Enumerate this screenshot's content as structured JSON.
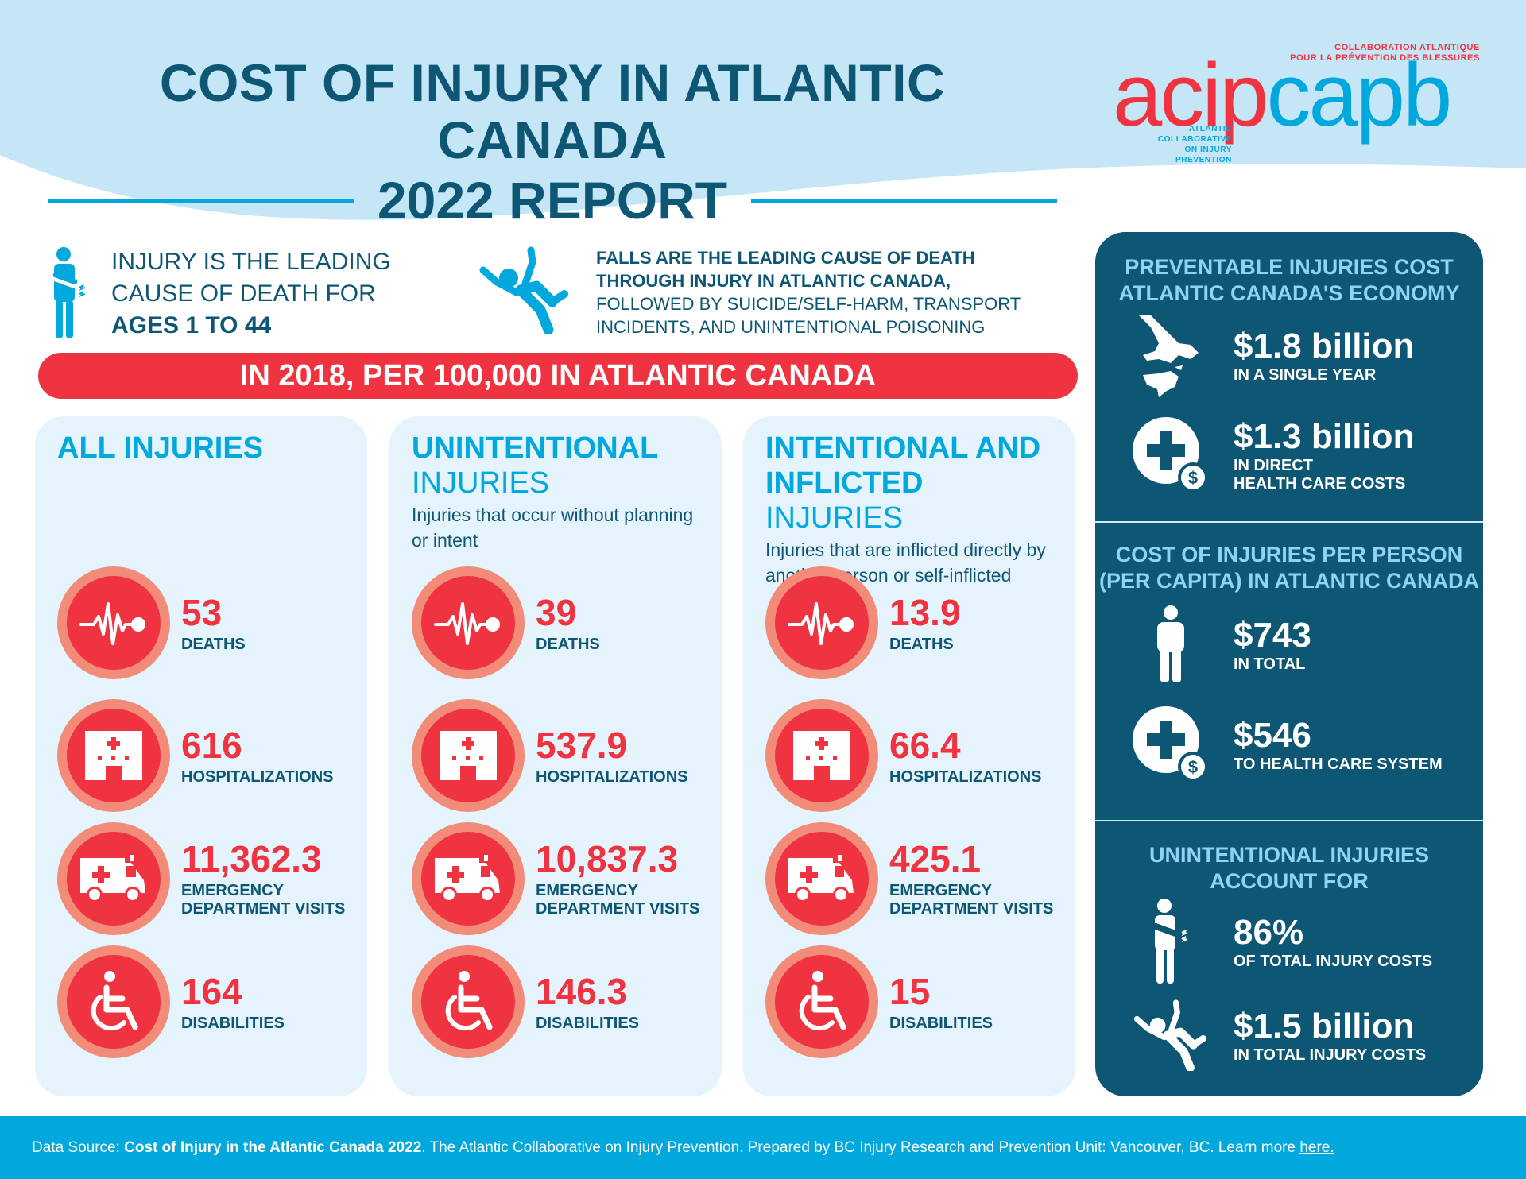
{
  "header": {
    "title_line1": "COST OF INJURY IN ATLANTIC CANADA",
    "title_line2": "2022 REPORT",
    "colors": {
      "title": "#0d5674",
      "rule": "#00a8de",
      "wave": "#c5e6f6"
    }
  },
  "logo": {
    "acip": "acip",
    "capb": "capb",
    "french_line1": "COLLABORATION ATLANTIQUE",
    "french_line2": "POUR LA PRÉVENTION DES BLESSURES",
    "english_line1": "ATLANTIC COLLABORATIVE",
    "english_line2": "ON INJURY PREVENTION",
    "colors": {
      "red": "#ef3340",
      "blue": "#00a8de"
    }
  },
  "intro": {
    "fact1": {
      "icon": "injured-person-icon",
      "line1": "INJURY IS THE LEADING",
      "line2": "CAUSE OF DEATH FOR",
      "line3": "AGES 1 TO 44"
    },
    "fact2": {
      "icon": "falling-person-icon",
      "bold_line1": "FALLS ARE THE LEADING CAUSE OF DEATH",
      "bold_line2": "THROUGH INJURY IN ATLANTIC CANADA,",
      "rest_line1": "FOLLOWED BY SUICIDE/SELF-HARM, TRANSPORT",
      "rest_line2": "INCIDENTS, AND UNINTENTIONAL POISONING"
    }
  },
  "banner": {
    "text": "IN 2018, PER 100,000 IN ATLANTIC CANADA",
    "color": "#ef3340"
  },
  "columns": [
    {
      "title_bold": "ALL INJURIES",
      "title_regular": "",
      "description": "",
      "stats": [
        {
          "icon": "heartbeat-icon",
          "value": "53",
          "label_line1": "DEATHS",
          "label_line2": ""
        },
        {
          "icon": "hospital-icon",
          "value": "616",
          "label_line1": "HOSPITALIZATIONS",
          "label_line2": ""
        },
        {
          "icon": "ambulance-icon",
          "value": "11,362.3",
          "label_line1": "EMERGENCY",
          "label_line2": "DEPARTMENT VISITS"
        },
        {
          "icon": "wheelchair-icon",
          "value": "164",
          "label_line1": "DISABILITIES",
          "label_line2": ""
        }
      ]
    },
    {
      "title_bold": "UNINTENTIONAL",
      "title_regular": "INJURIES",
      "description": "Injuries that occur without planning or intent",
      "stats": [
        {
          "icon": "heartbeat-icon",
          "value": "39",
          "label_line1": "DEATHS",
          "label_line2": ""
        },
        {
          "icon": "hospital-icon",
          "value": "537.9",
          "label_line1": "HOSPITALIZATIONS",
          "label_line2": ""
        },
        {
          "icon": "ambulance-icon",
          "value": "10,837.3",
          "label_line1": "EMERGENCY",
          "label_line2": "DEPARTMENT VISITS"
        },
        {
          "icon": "wheelchair-icon",
          "value": "146.3",
          "label_line1": "DISABILITIES",
          "label_line2": ""
        }
      ]
    },
    {
      "title_bold": "INTENTIONAL AND INFLICTED",
      "title_regular": "INJURIES",
      "description": "Injuries that are inflicted directly by another person or self-inflicted",
      "stats": [
        {
          "icon": "heartbeat-icon",
          "value": "13.9",
          "label_line1": "DEATHS",
          "label_line2": ""
        },
        {
          "icon": "hospital-icon",
          "value": "66.4",
          "label_line1": "HOSPITALIZATIONS",
          "label_line2": ""
        },
        {
          "icon": "ambulance-icon",
          "value": "425.1",
          "label_line1": "EMERGENCY",
          "label_line2": "DEPARTMENT VISITS"
        },
        {
          "icon": "wheelchair-icon",
          "value": "15",
          "label_line1": "DISABILITIES",
          "label_line2": ""
        }
      ]
    }
  ],
  "panel": {
    "section1": {
      "heading_line1": "PREVENTABLE INJURIES COST",
      "heading_line2": "ATLANTIC CANADA'S ECONOMY",
      "items": [
        {
          "icon": "atlantic-canada-map-icon",
          "value": "$1.8 billion",
          "label_line1": "IN A SINGLE YEAR",
          "label_line2": ""
        },
        {
          "icon": "health-cost-icon",
          "value": "$1.3 billion",
          "label_line1": "IN DIRECT",
          "label_line2": "HEALTH CARE COSTS"
        }
      ]
    },
    "section2": {
      "heading_line1": "COST OF INJURIES PER PERSON",
      "heading_line2": "(PER CAPITA) IN ATLANTIC CANADA",
      "items": [
        {
          "icon": "person-icon",
          "value": "$743",
          "label_line1": "IN TOTAL",
          "label_line2": ""
        },
        {
          "icon": "health-cost-icon",
          "value": "$546",
          "label_line1": "TO HEALTH CARE SYSTEM",
          "label_line2": ""
        }
      ]
    },
    "section3": {
      "heading_line1": "UNINTENTIONAL INJURIES",
      "heading_line2": "ACCOUNT FOR",
      "items": [
        {
          "icon": "injured-person-icon",
          "value": "86%",
          "label_line1": "OF TOTAL INJURY COSTS",
          "label_line2": ""
        },
        {
          "icon": "falling-person-icon",
          "value": "$1.5 billion",
          "label_line1": "IN TOTAL INJURY COSTS",
          "label_line2": ""
        }
      ]
    },
    "colors": {
      "background": "#0d5674",
      "heading": "#8fd3f2"
    }
  },
  "footer": {
    "prefix": "Data Source: ",
    "source_title": "Cost of Injury in the Atlantic Canada 2022",
    "middle": ". The Atlantic Collaborative on Injury Prevention. Prepared by BC Injury Research and Prevention Unit: Vancouver, BC. Learn more ",
    "link_text": "here.",
    "color": "#00a8de"
  }
}
